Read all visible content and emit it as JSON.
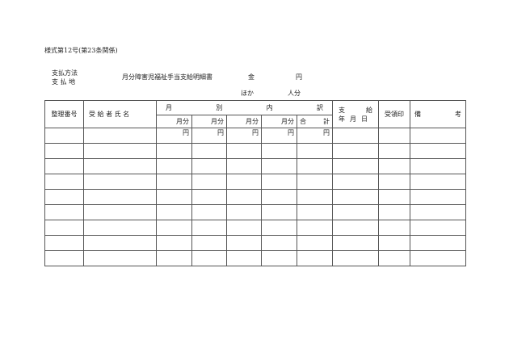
{
  "form_number": "様式第12号(第23条関係)",
  "payment_method": "支払方法",
  "payment_place": "支 払 地",
  "title": "月分障害児福祉手当支給明細書",
  "amount_label": "金",
  "yen": "円",
  "others_label": "ほか",
  "persons_label": "人分",
  "table": {
    "headers": {
      "number": "整理番号",
      "recipient": "受 給 者 氏 名",
      "breakdown": [
        "月",
        "別",
        "内",
        "訳"
      ],
      "pay_date_1": [
        "支",
        "給"
      ],
      "pay_date_2": [
        "年",
        "月",
        "日"
      ],
      "receipt_seal": "受領印",
      "remarks": [
        "備",
        "考"
      ]
    },
    "subheaders": [
      "月分",
      "月分",
      "月分",
      "月分"
    ],
    "total": [
      "合",
      "計"
    ],
    "unit": "円",
    "rows": 9
  }
}
